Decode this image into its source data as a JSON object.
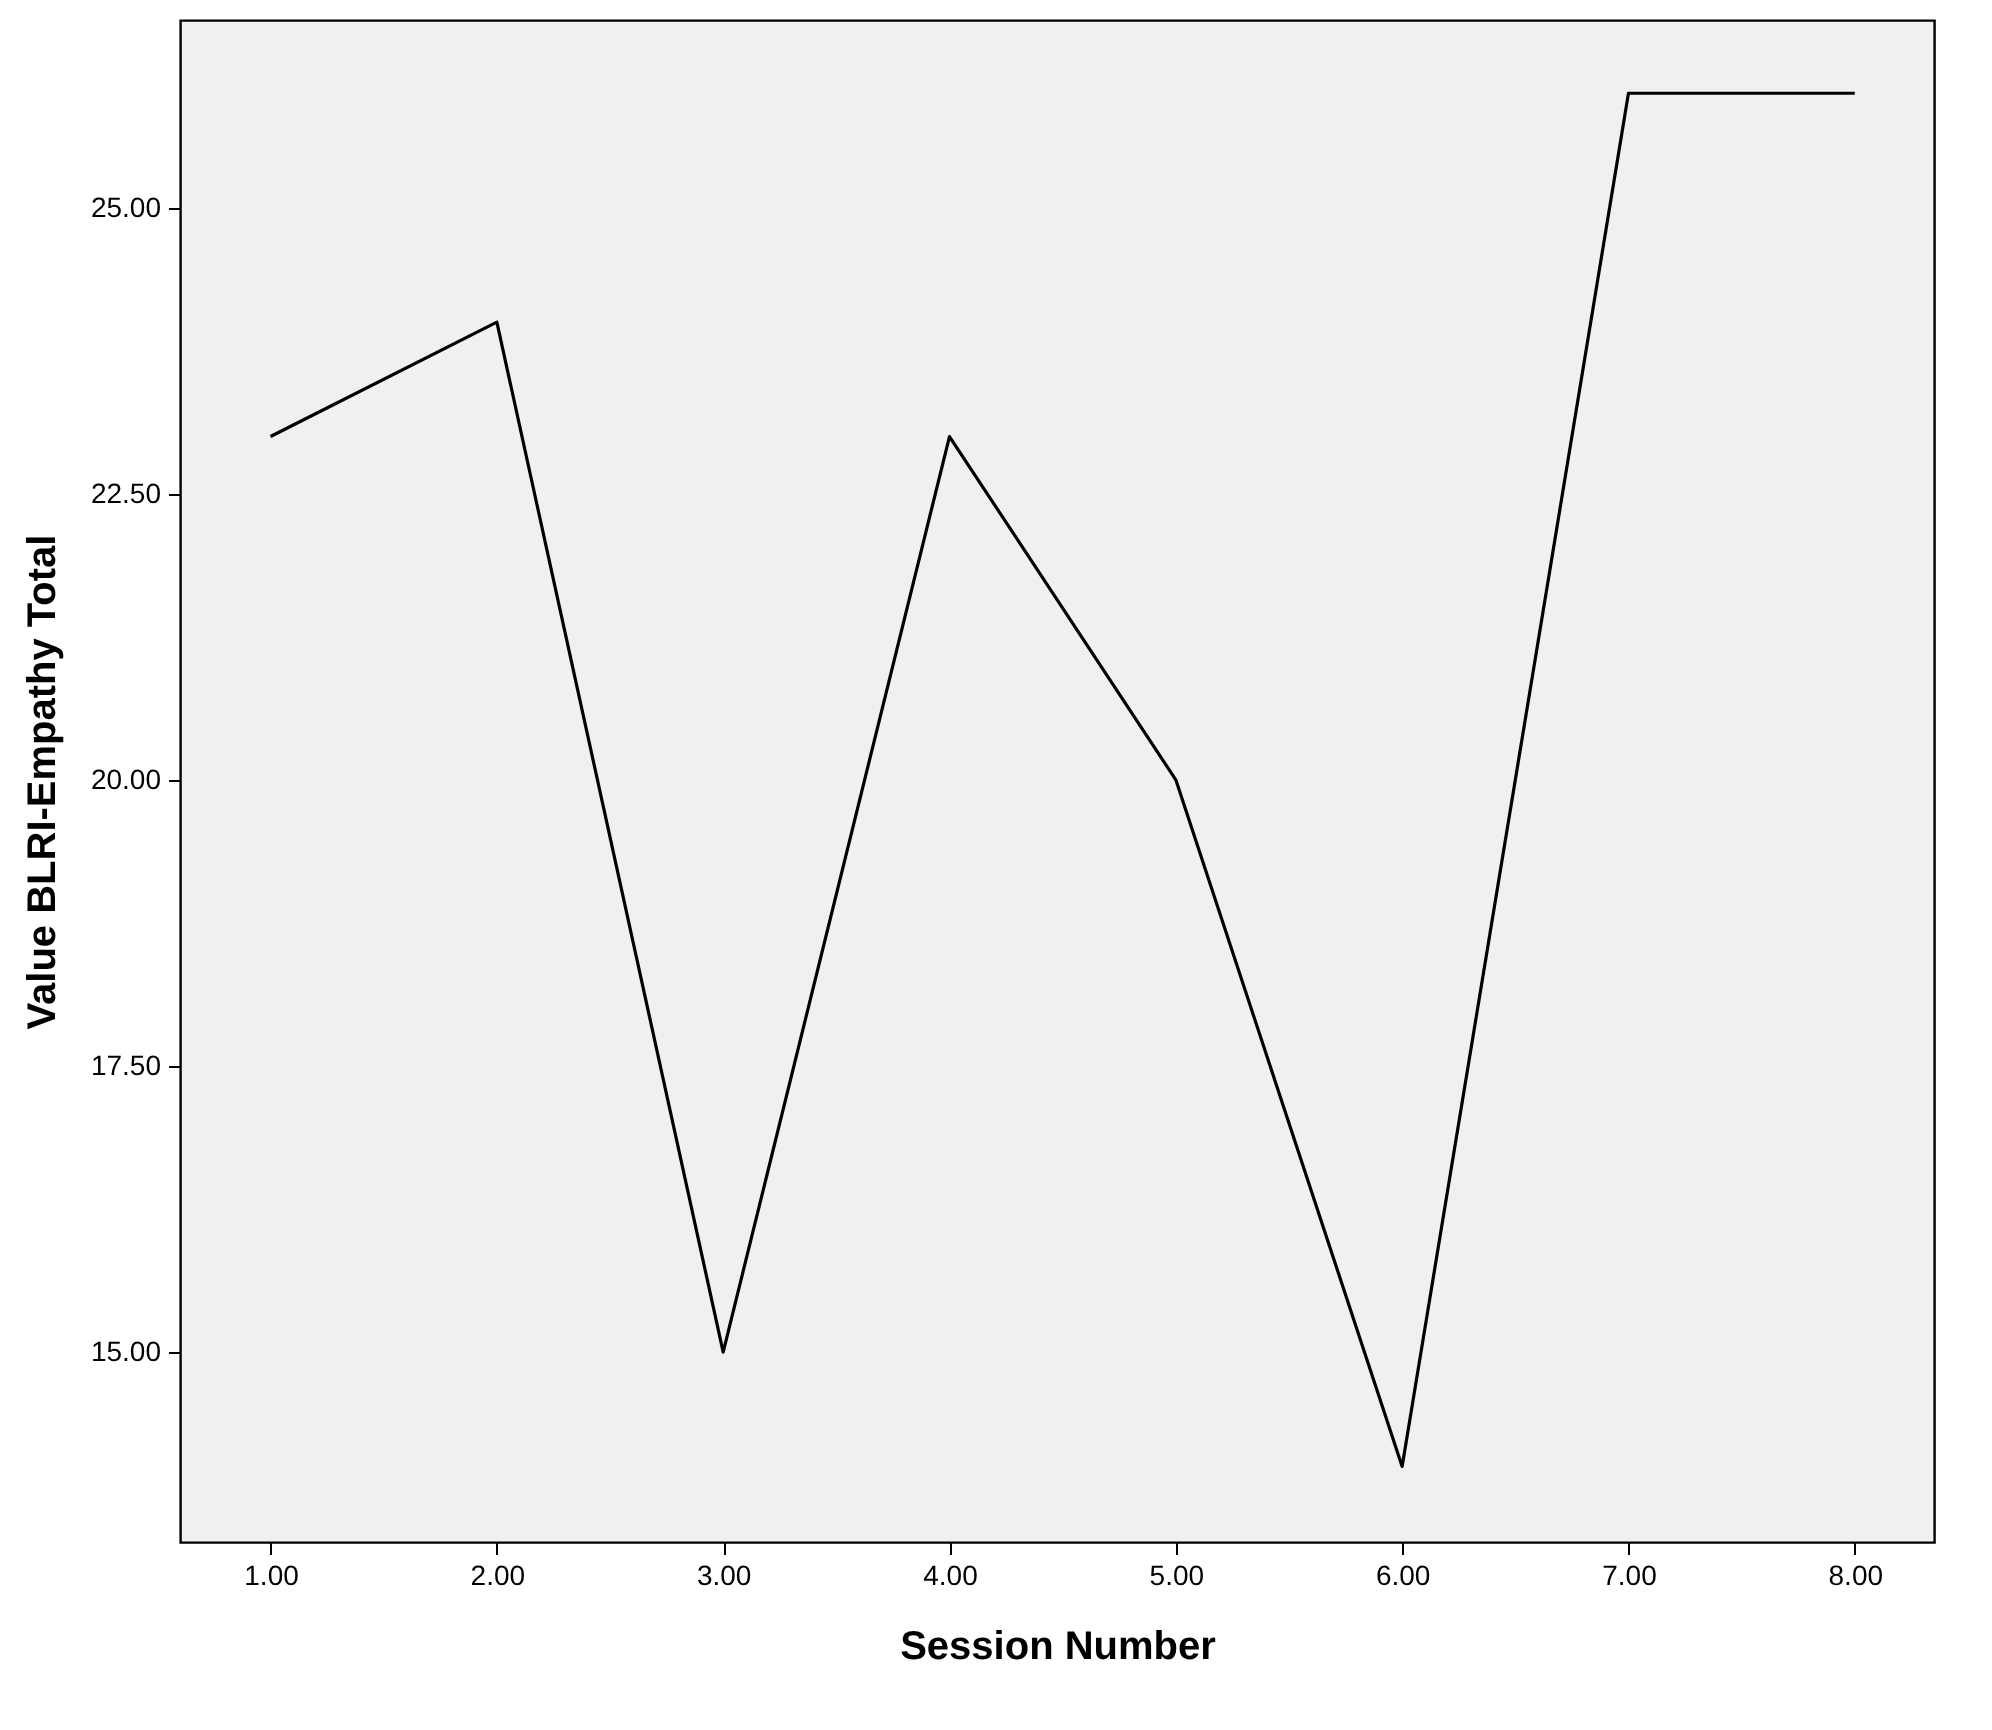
{
  "chart_data": {
    "type": "line",
    "xlabel": "Session Number",
    "ylabel": "Value BLRI-Empathy Total",
    "x": [
      1,
      2,
      3,
      4,
      5,
      6,
      7,
      8
    ],
    "series": [
      {
        "color": "#000000",
        "values": [
          23,
          24,
          15,
          23,
          20,
          14,
          26,
          26
        ]
      }
    ],
    "xlim": [
      0.6,
      8.35
    ],
    "ylim": [
      13.34,
      26.64
    ],
    "xticks": [
      {
        "value": 1,
        "label": "1.00"
      },
      {
        "value": 2,
        "label": "2.00"
      },
      {
        "value": 3,
        "label": "3.00"
      },
      {
        "value": 4,
        "label": "4.00"
      },
      {
        "value": 5,
        "label": "5.00"
      },
      {
        "value": 6,
        "label": "6.00"
      },
      {
        "value": 7,
        "label": "7.00"
      },
      {
        "value": 8,
        "label": "8.00"
      }
    ],
    "yticks": [
      {
        "value": 15,
        "label": "15.00"
      },
      {
        "value": 17.5,
        "label": "17.50"
      },
      {
        "value": 20,
        "label": "20.00"
      },
      {
        "value": 22.5,
        "label": "22.50"
      },
      {
        "value": 25,
        "label": "25.00"
      }
    ],
    "grid": false,
    "marker": "none",
    "line_style": "solid"
  }
}
